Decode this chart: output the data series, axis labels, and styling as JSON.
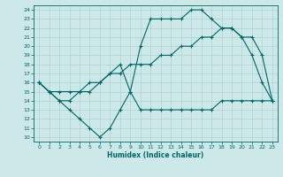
{
  "xlabel": "Humidex (Indice chaleur)",
  "bg_color": "#cce8e8",
  "grid_color": "#b0d0d0",
  "line_color": "#006666",
  "xlim": [
    -0.5,
    23.5
  ],
  "ylim": [
    9.5,
    24.5
  ],
  "xticks": [
    0,
    1,
    2,
    3,
    4,
    5,
    6,
    7,
    8,
    9,
    10,
    11,
    12,
    13,
    14,
    15,
    16,
    17,
    18,
    19,
    20,
    21,
    22,
    23
  ],
  "yticks": [
    10,
    11,
    12,
    13,
    14,
    15,
    16,
    17,
    18,
    19,
    20,
    21,
    22,
    23,
    24
  ],
  "line1_x": [
    0,
    1,
    2,
    3,
    4,
    5,
    6,
    7,
    8,
    9,
    10,
    11,
    12,
    13,
    14,
    15,
    16,
    17,
    18,
    19,
    20,
    21,
    22,
    23
  ],
  "line1_y": [
    16,
    15,
    14,
    13,
    12,
    11,
    10,
    11,
    13,
    15,
    13,
    13,
    13,
    13,
    13,
    13,
    13,
    13,
    14,
    14,
    14,
    14,
    14,
    14
  ],
  "line2_x": [
    0,
    1,
    2,
    3,
    4,
    5,
    6,
    7,
    8,
    9,
    10,
    11,
    12,
    13,
    14,
    15,
    16,
    17,
    18,
    19,
    20,
    21,
    22,
    23
  ],
  "line2_y": [
    16,
    15,
    15,
    15,
    15,
    16,
    16,
    17,
    17,
    18,
    18,
    18,
    19,
    19,
    20,
    20,
    21,
    21,
    22,
    22,
    21,
    21,
    19,
    14
  ],
  "line3_x": [
    0,
    1,
    2,
    3,
    4,
    5,
    6,
    7,
    8,
    9,
    10,
    11,
    12,
    13,
    14,
    15,
    16,
    17,
    18,
    19,
    20,
    21,
    22,
    23
  ],
  "line3_y": [
    16,
    15,
    14,
    14,
    15,
    15,
    16,
    17,
    18,
    15,
    20,
    23,
    23,
    23,
    23,
    24,
    24,
    23,
    22,
    22,
    21,
    19,
    16,
    14
  ],
  "marker": "+",
  "marker_size": 3,
  "lw": 0.8
}
